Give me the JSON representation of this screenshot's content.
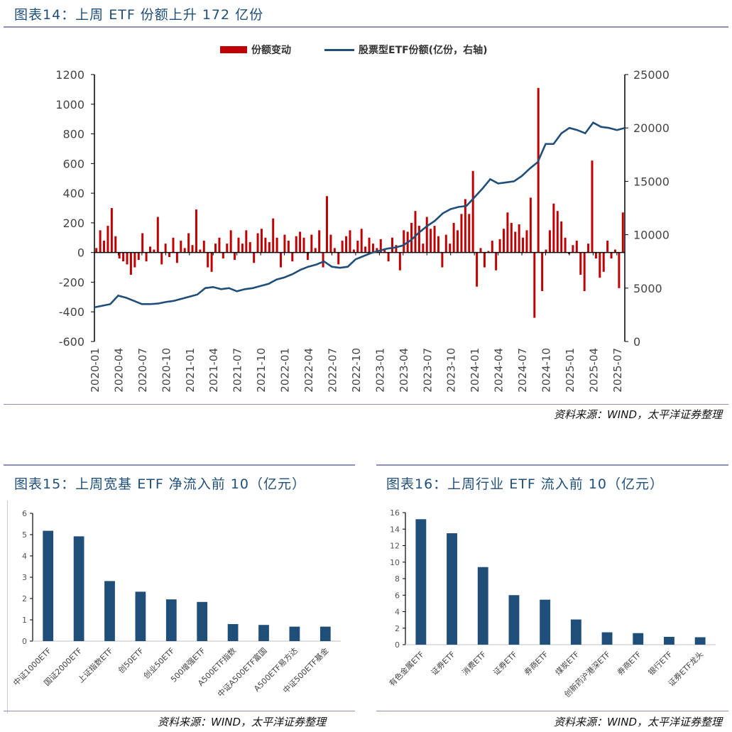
{
  "colors": {
    "title": "#1f4e79",
    "bar_red": "#c00000",
    "line_blue": "#1f4e79",
    "bar_blue": "#1f4e79",
    "rule": "#8e8eb8"
  },
  "fig14": {
    "title": "图表14：上周 ETF 份额上升 172 亿份",
    "source": "资料来源：WIND，太平洋证券整理"
  },
  "fig15": {
    "title": "图表15：上周宽基 ETF 净流入前 10（亿元）",
    "source": "资料来源：WIND，太平洋证券整理"
  },
  "fig16": {
    "title": "图表16：上周行业 ETF 流入前 10（亿元）",
    "source": "资料来源：WIND，太平洋证券整理"
  },
  "chart_data": [
    {
      "type": "bar+line",
      "legend": [
        "份额变动",
        "股票型ETF份额(亿份，右轴)"
      ],
      "legend_placement": "top",
      "ylim": [
        -600,
        1200
      ],
      "yticks": [
        "1200",
        "1000",
        "800",
        "600",
        "400",
        "200",
        "0",
        "-200",
        "-400",
        "-600"
      ],
      "y2lim": [
        0,
        25000
      ],
      "y2ticks": [
        "25000",
        "20000",
        "15000",
        "10000",
        "5000",
        "0"
      ],
      "xticks": [
        "2020-01",
        "2020-04",
        "2020-07",
        "2020-10",
        "2021-01",
        "2021-04",
        "2021-07",
        "2021-10",
        "2022-01",
        "2022-04",
        "2022-07",
        "2022-10",
        "2023-01",
        "2023-04",
        "2023-07",
        "2023-10",
        "2024-01",
        "2024-04",
        "2024-07",
        "2024-10",
        "2025-01",
        "2025-04",
        "2025-07"
      ],
      "x_range": [
        "2020-01",
        "2025-08"
      ],
      "series": [
        {
          "name": "份额变动",
          "axis": "left",
          "type": "bar",
          "values": [
            30,
            150,
            80,
            180,
            300,
            110,
            -40,
            -60,
            -80,
            -150,
            -100,
            -50,
            130,
            -60,
            40,
            20,
            240,
            -80,
            60,
            -30,
            100,
            -70,
            80,
            30,
            130,
            50,
            290,
            20,
            80,
            -100,
            -130,
            60,
            100,
            -40,
            60,
            150,
            -50,
            100,
            60,
            150,
            70,
            -70,
            130,
            160,
            100,
            70,
            230,
            100,
            -100,
            120,
            80,
            -60,
            110,
            140,
            100,
            -50,
            120,
            30,
            150,
            -100,
            380,
            120,
            30,
            -80,
            80,
            110,
            150,
            20,
            80,
            160,
            40,
            100,
            60,
            30,
            90,
            20,
            -60,
            100,
            50,
            -120,
            150,
            140,
            200,
            280,
            180,
            60,
            240,
            160,
            180,
            110,
            -100,
            120,
            60,
            200,
            150,
            260,
            360,
            260,
            550,
            -230,
            30,
            -100,
            10,
            80,
            -120,
            90,
            160,
            270,
            200,
            140,
            190,
            100,
            150,
            370,
            -440,
            1110,
            -260,
            20,
            150,
            330,
            280,
            210,
            100,
            -10,
            50,
            80,
            -150,
            -260,
            60,
            620,
            -40,
            -170,
            -130,
            80,
            -40,
            20,
            -240,
            270
          ]
        },
        {
          "name": "股票型ETF份额(亿份，右轴)",
          "axis": "right",
          "type": "line",
          "monthly_from": "2020-01",
          "values": [
            3200,
            3350,
            3500,
            4300,
            4100,
            3800,
            3500,
            3500,
            3550,
            3700,
            3800,
            4000,
            4200,
            4400,
            5000,
            5100,
            4900,
            5000,
            4700,
            4900,
            5000,
            5200,
            5400,
            5800,
            6000,
            6300,
            6700,
            7000,
            7200,
            7500,
            7000,
            6900,
            7000,
            7700,
            8000,
            8300,
            8500,
            8700,
            8800,
            9000,
            9500,
            10200,
            10800,
            11300,
            12000,
            12400,
            12600,
            12700,
            13500,
            14300,
            15200,
            14800,
            14900,
            15000,
            15500,
            16200,
            16800,
            18500,
            18500,
            19500,
            20000,
            19800,
            19500,
            20500,
            20100,
            20000,
            19800,
            20000
          ]
        }
      ]
    },
    {
      "type": "bar",
      "categories": [
        "中证1000ETF",
        "国证2000ETF",
        "上证指数ETF",
        "创50ETF",
        "创业50ETF",
        "500增强ETF",
        "A500ETF指数",
        "中证A500ETF富国",
        "A500ETF易方达",
        "中证500ETF基金"
      ],
      "values": [
        5.18,
        4.92,
        2.82,
        2.32,
        1.96,
        1.84,
        0.8,
        0.76,
        0.68,
        0.68
      ],
      "ylim": [
        0,
        6
      ],
      "yticks": [
        "0",
        "1",
        "2",
        "3",
        "4",
        "5",
        "6"
      ]
    },
    {
      "type": "bar",
      "categories": [
        "有色金属ETF",
        "证券ETF",
        "消费ETF",
        "证券ETF",
        "券商ETF",
        "煤炭ETF",
        "创新药沪港深ETF",
        "券商ETF",
        "银行ETF",
        "证券ETF龙头"
      ],
      "values": [
        15.2,
        13.5,
        9.4,
        6.0,
        5.45,
        3.05,
        1.5,
        1.4,
        0.95,
        0.9
      ],
      "ylim": [
        0,
        16
      ],
      "yticks": [
        "0",
        "2",
        "4",
        "6",
        "8",
        "10",
        "12",
        "14",
        "16"
      ]
    }
  ]
}
